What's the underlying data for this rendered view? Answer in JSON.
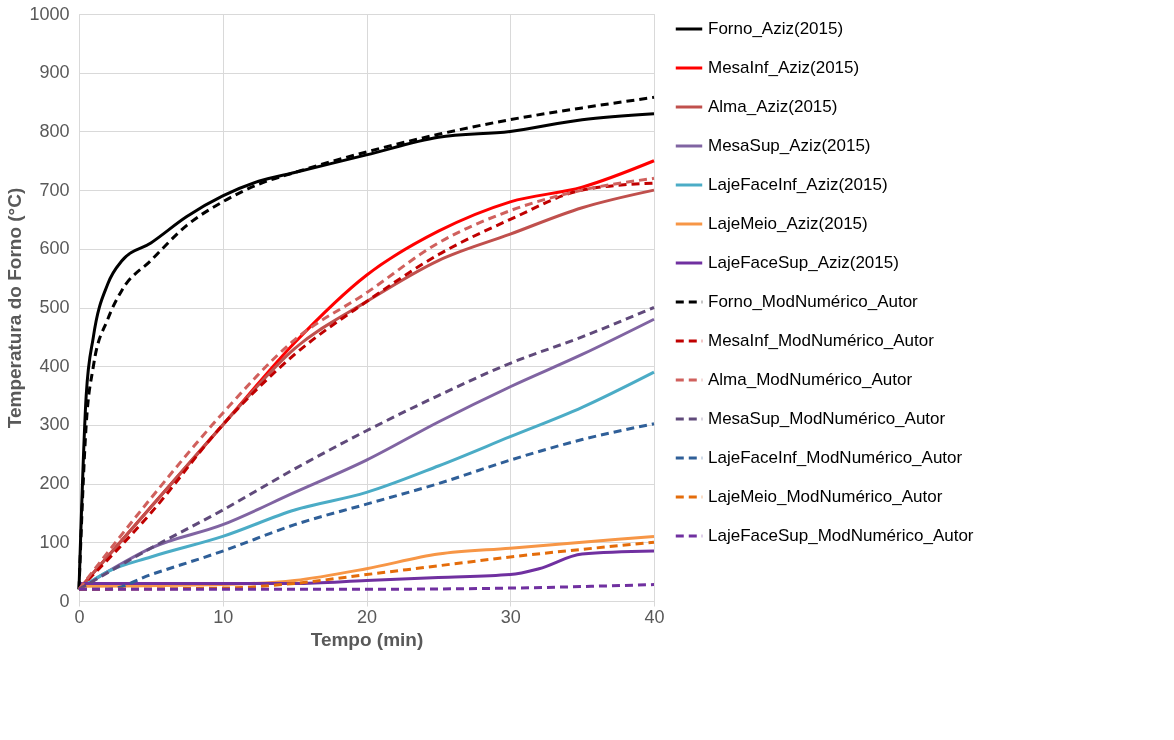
{
  "chart_data": {
    "type": "line",
    "xlabel": "Tempo (min)",
    "ylabel": "Temperatura do Forno (°C)",
    "xlim": [
      0,
      40
    ],
    "xticks": [
      0,
      10,
      20,
      30,
      40
    ],
    "ylim": [
      0,
      1000
    ],
    "yticks": [
      0,
      100,
      200,
      300,
      400,
      500,
      600,
      700,
      800,
      900,
      1000
    ],
    "grid": true,
    "legend": "right",
    "marker": "none",
    "series": [
      {
        "name": "Forno_Aziz(2015)",
        "color": "#000000",
        "line_style": "solid",
        "x": [
          0,
          0.5,
          1,
          2,
          3,
          5,
          7.5,
          10,
          12.5,
          15,
          20,
          25,
          30,
          35,
          40
        ],
        "values": [
          20,
          350,
          450,
          540,
          580,
          610,
          655,
          690,
          715,
          730,
          760,
          790,
          800,
          820,
          830
        ]
      },
      {
        "name": "MesaInf_Aziz(2015)",
        "color": "#ff0000",
        "line_style": "solid",
        "x": [
          0,
          5,
          10,
          15,
          20,
          25,
          30,
          35,
          40
        ],
        "values": [
          20,
          160,
          300,
          440,
          555,
          630,
          680,
          705,
          750
        ]
      },
      {
        "name": "Alma_Aziz(2015)",
        "color": "#c0504d",
        "line_style": "solid",
        "x": [
          0,
          5,
          10,
          15,
          20,
          25,
          30,
          35,
          40
        ],
        "values": [
          20,
          160,
          300,
          430,
          510,
          580,
          625,
          670,
          700
        ]
      },
      {
        "name": "MesaSup_Aziz(2015)",
        "color": "#8064a2",
        "line_style": "solid",
        "x": [
          0,
          2,
          5,
          10,
          15,
          20,
          25,
          30,
          35,
          40
        ],
        "values": [
          20,
          50,
          90,
          130,
          185,
          240,
          305,
          365,
          420,
          480
        ]
      },
      {
        "name": "LajeFaceInf_Aziz(2015)",
        "color": "#4bacc6",
        "line_style": "solid",
        "x": [
          0,
          2,
          5,
          10,
          15,
          20,
          25,
          30,
          35,
          40
        ],
        "values": [
          20,
          50,
          75,
          110,
          155,
          185,
          230,
          280,
          330,
          390
        ]
      },
      {
        "name": "LajeMeio_Aziz(2015)",
        "color": "#f79646",
        "line_style": "solid",
        "x": [
          0,
          10,
          15,
          20,
          25,
          30,
          35,
          40
        ],
        "values": [
          25,
          28,
          35,
          55,
          80,
          90,
          100,
          110
        ]
      },
      {
        "name": "LajeFaceSup_Aziz(2015)",
        "color": "#7030a0",
        "line_style": "solid",
        "x": [
          0,
          10,
          15,
          20,
          25,
          30,
          32,
          35,
          40
        ],
        "values": [
          30,
          30,
          30,
          35,
          40,
          45,
          55,
          80,
          85
        ]
      },
      {
        "name": "Forno_ModNumérico_Autor",
        "color": "#000000",
        "line_style": "dashed",
        "x": [
          0,
          0.5,
          1,
          2,
          3,
          5,
          7.5,
          10,
          12.5,
          15,
          20,
          25,
          30,
          35,
          40
        ],
        "values": [
          20,
          300,
          400,
          480,
          530,
          580,
          640,
          680,
          710,
          730,
          765,
          795,
          820,
          840,
          858
        ]
      },
      {
        "name": "MesaInf_ModNumérico_Autor",
        "color": "#c00000",
        "line_style": "dashed",
        "x": [
          0,
          5,
          10,
          15,
          20,
          25,
          30,
          35,
          40
        ],
        "values": [
          20,
          150,
          300,
          420,
          510,
          590,
          650,
          700,
          712
        ]
      },
      {
        "name": "Alma_ModNumérico_Autor",
        "color": "#d0605d",
        "line_style": "dashed",
        "x": [
          0,
          5,
          10,
          15,
          20,
          25,
          30,
          35,
          40
        ],
        "values": [
          20,
          175,
          320,
          445,
          525,
          610,
          665,
          700,
          720
        ]
      },
      {
        "name": "MesaSup_ModNumérico_Autor",
        "color": "#604a7b",
        "line_style": "dashed",
        "x": [
          0,
          5,
          10,
          15,
          20,
          25,
          30,
          35,
          40
        ],
        "values": [
          20,
          90,
          155,
          225,
          290,
          350,
          405,
          450,
          500
        ]
      },
      {
        "name": "LajeFaceInf_ModNumérico_Autor",
        "color": "#2f5f98",
        "line_style": "dashed",
        "x": [
          0,
          2,
          5,
          10,
          15,
          20,
          25,
          30,
          35,
          40
        ],
        "values": [
          20,
          20,
          45,
          85,
          130,
          165,
          200,
          240,
          275,
          302
        ]
      },
      {
        "name": "LajeMeio_ModNumérico_Autor",
        "color": "#e46c0a",
        "line_style": "dashed",
        "x": [
          0,
          10,
          15,
          20,
          25,
          30,
          35,
          40
        ],
        "values": [
          20,
          22,
          30,
          45,
          60,
          75,
          88,
          100
        ]
      },
      {
        "name": "LajeFaceSup_ModNumérico_Autor",
        "color": "#7030a0",
        "line_style": "dashed",
        "x": [
          0,
          10,
          20,
          30,
          40
        ],
        "values": [
          20,
          20,
          20,
          22,
          28
        ]
      }
    ]
  }
}
